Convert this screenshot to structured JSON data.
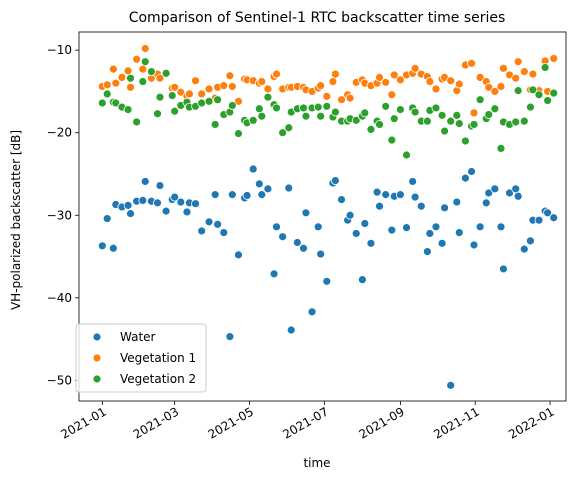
{
  "chart_data": {
    "type": "scatter",
    "title": "Comparison of Sentinel-1 RTC backscatter time series",
    "xlabel": "time",
    "ylabel": "VH-polarized backscatter [dB]",
    "xlim": [
      "2020-12-13",
      "2022-01-14"
    ],
    "ylim": [
      -52.5,
      -7.8
    ],
    "xticks": [
      "2021-01",
      "2021-03",
      "2021-05",
      "2021-07",
      "2021-09",
      "2021-11",
      "2022-01"
    ],
    "yticks": [
      -10,
      -20,
      -30,
      -40,
      -50
    ],
    "grid": false,
    "legend_position": "lower-left",
    "series": [
      {
        "name": "Water",
        "color": "#1f77b4",
        "points": [
          [
            "2021-01-01",
            -33.7
          ],
          [
            "2021-01-05",
            -30.4
          ],
          [
            "2021-01-10",
            -34.0
          ],
          [
            "2021-01-12",
            -28.7
          ],
          [
            "2021-01-17",
            -29.0
          ],
          [
            "2021-01-22",
            -28.8
          ],
          [
            "2021-01-24",
            -29.8
          ],
          [
            "2021-01-29",
            -28.3
          ],
          [
            "2021-02-03",
            -28.2
          ],
          [
            "2021-02-05",
            -25.9
          ],
          [
            "2021-02-10",
            -28.3
          ],
          [
            "2021-02-15",
            -28.5
          ],
          [
            "2021-02-17",
            -26.4
          ],
          [
            "2021-02-22",
            -29.5
          ],
          [
            "2021-02-27",
            -28.1
          ],
          [
            "2021-03-01",
            -27.8
          ],
          [
            "2021-03-06",
            -28.4
          ],
          [
            "2021-03-11",
            -29.6
          ],
          [
            "2021-03-13",
            -28.5
          ],
          [
            "2021-03-18",
            -28.6
          ],
          [
            "2021-03-23",
            -31.9
          ],
          [
            "2021-03-29",
            -30.8
          ],
          [
            "2021-04-03",
            -27.5
          ],
          [
            "2021-04-05",
            -31.1
          ],
          [
            "2021-04-10",
            -32.1
          ],
          [
            "2021-04-15",
            -44.7
          ],
          [
            "2021-04-17",
            -27.5
          ],
          [
            "2021-04-22",
            -34.8
          ],
          [
            "2021-04-27",
            -27.9
          ],
          [
            "2021-04-29",
            -27.6
          ],
          [
            "2021-05-04",
            -24.4
          ],
          [
            "2021-05-09",
            -26.2
          ],
          [
            "2021-05-11",
            -27.5
          ],
          [
            "2021-05-16",
            -26.8
          ],
          [
            "2021-05-21",
            -37.1
          ],
          [
            "2021-05-23",
            -31.4
          ],
          [
            "2021-05-28",
            -32.6
          ],
          [
            "2021-06-02",
            -26.7
          ],
          [
            "2021-06-04",
            -43.9
          ],
          [
            "2021-06-09",
            -33.3
          ],
          [
            "2021-06-14",
            -34.0
          ],
          [
            "2021-06-16",
            -29.7
          ],
          [
            "2021-06-21",
            -41.7
          ],
          [
            "2021-06-26",
            -31.4
          ],
          [
            "2021-06-28",
            -34.7
          ],
          [
            "2021-07-03",
            -38.0
          ],
          [
            "2021-07-08",
            -26.1
          ],
          [
            "2021-07-10",
            -25.8
          ],
          [
            "2021-07-15",
            -28.1
          ],
          [
            "2021-07-20",
            -30.6
          ],
          [
            "2021-07-22",
            -30.0
          ],
          [
            "2021-07-27",
            -32.2
          ],
          [
            "2021-08-01",
            -37.8
          ],
          [
            "2021-08-03",
            -31.0
          ],
          [
            "2021-08-08",
            -33.4
          ],
          [
            "2021-08-13",
            -27.2
          ],
          [
            "2021-08-15",
            -28.9
          ],
          [
            "2021-08-20",
            -27.5
          ],
          [
            "2021-08-25",
            -31.8
          ],
          [
            "2021-08-27",
            -27.7
          ],
          [
            "2021-09-01",
            -27.5
          ],
          [
            "2021-09-06",
            -31.5
          ],
          [
            "2021-09-11",
            -25.9
          ],
          [
            "2021-09-13",
            -27.8
          ],
          [
            "2021-09-18",
            -28.9
          ],
          [
            "2021-09-23",
            -34.4
          ],
          [
            "2021-09-25",
            -32.2
          ],
          [
            "2021-09-30",
            -31.4
          ],
          [
            "2021-10-05",
            -33.4
          ],
          [
            "2021-10-07",
            -29.1
          ],
          [
            "2021-10-12",
            -50.6
          ],
          [
            "2021-10-17",
            -28.4
          ],
          [
            "2021-10-19",
            -32.1
          ],
          [
            "2021-10-24",
            -25.5
          ],
          [
            "2021-10-29",
            -24.7
          ],
          [
            "2021-10-31",
            -33.6
          ],
          [
            "2021-11-05",
            -31.4
          ],
          [
            "2021-11-10",
            -28.5
          ],
          [
            "2021-11-12",
            -27.3
          ],
          [
            "2021-11-17",
            -26.8
          ],
          [
            "2021-11-22",
            -31.4
          ],
          [
            "2021-11-24",
            -36.5
          ],
          [
            "2021-11-29",
            -27.3
          ],
          [
            "2021-12-04",
            -26.8
          ],
          [
            "2021-12-06",
            -27.7
          ],
          [
            "2021-12-11",
            -34.1
          ],
          [
            "2021-12-16",
            -33.1
          ],
          [
            "2021-12-18",
            -30.6
          ],
          [
            "2021-12-23",
            -30.6
          ],
          [
            "2021-12-28",
            -29.5
          ],
          [
            "2021-12-30",
            -29.7
          ],
          [
            "2022-01-04",
            -30.3
          ]
        ]
      },
      {
        "name": "Vegetation 1",
        "color": "#ff7f0e",
        "points": [
          [
            "2021-01-01",
            -14.4
          ],
          [
            "2021-01-05",
            -14.2
          ],
          [
            "2021-01-10",
            -12.3
          ],
          [
            "2021-01-12",
            -14.0
          ],
          [
            "2021-01-17",
            -13.3
          ],
          [
            "2021-01-22",
            -12.5
          ],
          [
            "2021-01-24",
            -14.5
          ],
          [
            "2021-01-29",
            -11.1
          ],
          [
            "2021-02-03",
            -12.3
          ],
          [
            "2021-02-05",
            -9.8
          ],
          [
            "2021-02-10",
            -13.4
          ],
          [
            "2021-02-15",
            -12.9
          ],
          [
            "2021-02-17",
            -13.4
          ],
          [
            "2021-02-22",
            -12.8
          ],
          [
            "2021-02-27",
            -14.6
          ],
          [
            "2021-03-01",
            -14.5
          ],
          [
            "2021-03-06",
            -15.1
          ],
          [
            "2021-03-11",
            -15.6
          ],
          [
            "2021-03-13",
            -15.3
          ],
          [
            "2021-03-18",
            -13.7
          ],
          [
            "2021-03-23",
            -15.3
          ],
          [
            "2021-03-29",
            -14.7
          ],
          [
            "2021-04-03",
            -15.8
          ],
          [
            "2021-04-05",
            -14.5
          ],
          [
            "2021-04-10",
            -14.3
          ],
          [
            "2021-04-15",
            -13.1
          ],
          [
            "2021-04-17",
            -14.4
          ],
          [
            "2021-04-22",
            -16.2
          ],
          [
            "2021-04-27",
            -13.5
          ],
          [
            "2021-04-29",
            -13.6
          ],
          [
            "2021-05-04",
            -13.7
          ],
          [
            "2021-05-09",
            -14.0
          ],
          [
            "2021-05-11",
            -13.8
          ],
          [
            "2021-05-16",
            -14.7
          ],
          [
            "2021-05-21",
            -13.2
          ],
          [
            "2021-05-23",
            -12.9
          ],
          [
            "2021-05-28",
            -14.7
          ],
          [
            "2021-06-02",
            -14.5
          ],
          [
            "2021-06-04",
            -14.5
          ],
          [
            "2021-06-09",
            -14.4
          ],
          [
            "2021-06-14",
            -14.5
          ],
          [
            "2021-06-16",
            -14.8
          ],
          [
            "2021-06-21",
            -15.0
          ],
          [
            "2021-06-26",
            -14.6
          ],
          [
            "2021-06-28",
            -14.3
          ],
          [
            "2021-07-03",
            -15.6
          ],
          [
            "2021-07-08",
            -13.8
          ],
          [
            "2021-07-10",
            -12.9
          ],
          [
            "2021-07-15",
            -16.0
          ],
          [
            "2021-07-20",
            -15.4
          ],
          [
            "2021-07-22",
            -15.8
          ],
          [
            "2021-07-27",
            -13.9
          ],
          [
            "2021-08-01",
            -13.6
          ],
          [
            "2021-08-03",
            -14.0
          ],
          [
            "2021-08-08",
            -14.3
          ],
          [
            "2021-08-13",
            -14.0
          ],
          [
            "2021-08-15",
            -13.3
          ],
          [
            "2021-08-20",
            -13.9
          ],
          [
            "2021-08-25",
            -15.4
          ],
          [
            "2021-08-27",
            -13.0
          ],
          [
            "2021-09-01",
            -13.6
          ],
          [
            "2021-09-06",
            -13.0
          ],
          [
            "2021-09-11",
            -12.8
          ],
          [
            "2021-09-13",
            -12.2
          ],
          [
            "2021-09-18",
            -12.9
          ],
          [
            "2021-09-23",
            -13.2
          ],
          [
            "2021-09-25",
            -13.8
          ],
          [
            "2021-09-30",
            -14.7
          ],
          [
            "2021-10-05",
            -13.5
          ],
          [
            "2021-10-07",
            -13.3
          ],
          [
            "2021-10-12",
            -13.7
          ],
          [
            "2021-10-17",
            -14.9
          ],
          [
            "2021-10-19",
            -14.1
          ],
          [
            "2021-10-24",
            -11.8
          ],
          [
            "2021-10-29",
            -11.6
          ],
          [
            "2021-10-31",
            -17.6
          ],
          [
            "2021-11-05",
            -13.3
          ],
          [
            "2021-11-10",
            -13.8
          ],
          [
            "2021-11-12",
            -14.5
          ],
          [
            "2021-11-17",
            -15.0
          ],
          [
            "2021-11-22",
            -14.4
          ],
          [
            "2021-11-24",
            -12.2
          ],
          [
            "2021-11-29",
            -13.0
          ],
          [
            "2021-12-04",
            -13.4
          ],
          [
            "2021-12-06",
            -11.4
          ],
          [
            "2021-12-11",
            -12.6
          ],
          [
            "2021-12-16",
            -14.8
          ],
          [
            "2021-12-18",
            -12.9
          ],
          [
            "2021-12-23",
            -14.9
          ],
          [
            "2021-12-28",
            -11.3
          ],
          [
            "2021-12-30",
            -15.0
          ],
          [
            "2022-01-04",
            -11.0
          ]
        ]
      },
      {
        "name": "Vegetation 2",
        "color": "#2ca02c",
        "points": [
          [
            "2021-01-01",
            -16.4
          ],
          [
            "2021-01-05",
            -15.3
          ],
          [
            "2021-01-10",
            -16.3
          ],
          [
            "2021-01-12",
            -16.4
          ],
          [
            "2021-01-17",
            -16.9
          ],
          [
            "2021-01-22",
            -17.2
          ],
          [
            "2021-01-24",
            -13.4
          ],
          [
            "2021-01-29",
            -18.7
          ],
          [
            "2021-02-03",
            -13.8
          ],
          [
            "2021-02-05",
            -11.4
          ],
          [
            "2021-02-10",
            -12.6
          ],
          [
            "2021-02-15",
            -17.7
          ],
          [
            "2021-02-17",
            -15.7
          ],
          [
            "2021-02-22",
            -12.8
          ],
          [
            "2021-02-27",
            -15.5
          ],
          [
            "2021-03-01",
            -17.4
          ],
          [
            "2021-03-06",
            -16.7
          ],
          [
            "2021-03-11",
            -16.3
          ],
          [
            "2021-03-13",
            -16.9
          ],
          [
            "2021-03-18",
            -16.8
          ],
          [
            "2021-03-23",
            -16.4
          ],
          [
            "2021-03-29",
            -16.2
          ],
          [
            "2021-04-03",
            -19.0
          ],
          [
            "2021-04-05",
            -16.0
          ],
          [
            "2021-04-10",
            -17.8
          ],
          [
            "2021-04-15",
            -17.5
          ],
          [
            "2021-04-17",
            -16.7
          ],
          [
            "2021-04-22",
            -20.1
          ],
          [
            "2021-04-27",
            -18.5
          ],
          [
            "2021-04-29",
            -18.8
          ],
          [
            "2021-05-04",
            -18.5
          ],
          [
            "2021-05-09",
            -17.1
          ],
          [
            "2021-05-11",
            -18.0
          ],
          [
            "2021-05-16",
            -15.7
          ],
          [
            "2021-05-21",
            -16.6
          ],
          [
            "2021-05-23",
            -17.0
          ],
          [
            "2021-05-28",
            -20.0
          ],
          [
            "2021-06-02",
            -19.4
          ],
          [
            "2021-06-04",
            -17.5
          ],
          [
            "2021-06-09",
            -17.1
          ],
          [
            "2021-06-14",
            -17.0
          ],
          [
            "2021-06-16",
            -18.0
          ],
          [
            "2021-06-21",
            -17.0
          ],
          [
            "2021-06-26",
            -16.9
          ],
          [
            "2021-06-28",
            -18.0
          ],
          [
            "2021-07-03",
            -16.8
          ],
          [
            "2021-07-08",
            -18.1
          ],
          [
            "2021-07-10",
            -17.5
          ],
          [
            "2021-07-15",
            -18.6
          ],
          [
            "2021-07-20",
            -18.6
          ],
          [
            "2021-07-22",
            -18.3
          ],
          [
            "2021-07-27",
            -18.5
          ],
          [
            "2021-08-01",
            -18.0
          ],
          [
            "2021-08-03",
            -17.6
          ],
          [
            "2021-08-08",
            -19.6
          ],
          [
            "2021-08-13",
            -18.6
          ],
          [
            "2021-08-15",
            -19.0
          ],
          [
            "2021-08-20",
            -16.8
          ],
          [
            "2021-08-25",
            -20.9
          ],
          [
            "2021-08-27",
            -18.3
          ],
          [
            "2021-09-01",
            -17.2
          ],
          [
            "2021-09-06",
            -22.7
          ],
          [
            "2021-09-11",
            -17.0
          ],
          [
            "2021-09-13",
            -17.5
          ],
          [
            "2021-09-18",
            -18.6
          ],
          [
            "2021-09-23",
            -18.6
          ],
          [
            "2021-09-25",
            -17.3
          ],
          [
            "2021-09-30",
            -17.0
          ],
          [
            "2021-10-05",
            -17.9
          ],
          [
            "2021-10-07",
            -19.8
          ],
          [
            "2021-10-12",
            -18.6
          ],
          [
            "2021-10-17",
            -17.9
          ],
          [
            "2021-10-19",
            -18.9
          ],
          [
            "2021-10-24",
            -21.0
          ],
          [
            "2021-10-29",
            -19.2
          ],
          [
            "2021-10-31",
            -19.0
          ],
          [
            "2021-11-05",
            -16.0
          ],
          [
            "2021-11-10",
            -18.3
          ],
          [
            "2021-11-12",
            -17.8
          ],
          [
            "2021-11-17",
            -17.1
          ],
          [
            "2021-11-22",
            -21.9
          ],
          [
            "2021-11-24",
            -18.7
          ],
          [
            "2021-11-29",
            -19.0
          ],
          [
            "2021-12-04",
            -18.7
          ],
          [
            "2021-12-06",
            -14.9
          ],
          [
            "2021-12-11",
            -18.6
          ],
          [
            "2021-12-16",
            -16.9
          ],
          [
            "2021-12-18",
            -14.8
          ],
          [
            "2021-12-23",
            -15.4
          ],
          [
            "2021-12-28",
            -12.1
          ],
          [
            "2021-12-30",
            -16.1
          ],
          [
            "2022-01-04",
            -15.2
          ]
        ]
      }
    ]
  }
}
